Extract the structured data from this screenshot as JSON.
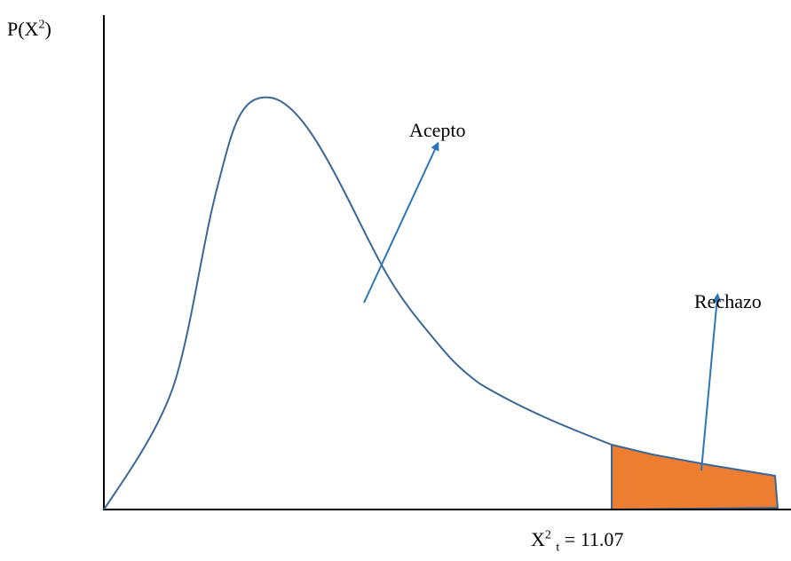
{
  "y_axis": {
    "label_base": "P(X",
    "label_sup": "2",
    "label_close": ")"
  },
  "regions": {
    "accept_label": "Acepto",
    "reject_label": "Rechazo"
  },
  "critical_value": {
    "base": "X",
    "sup": "2",
    "sub": "t",
    "value_text": "= 11.07"
  },
  "colors": {
    "curve": "#3b6796",
    "axis": "#000000",
    "arrow": "#2e75b6",
    "reject_fill": "#ed7d31"
  }
}
